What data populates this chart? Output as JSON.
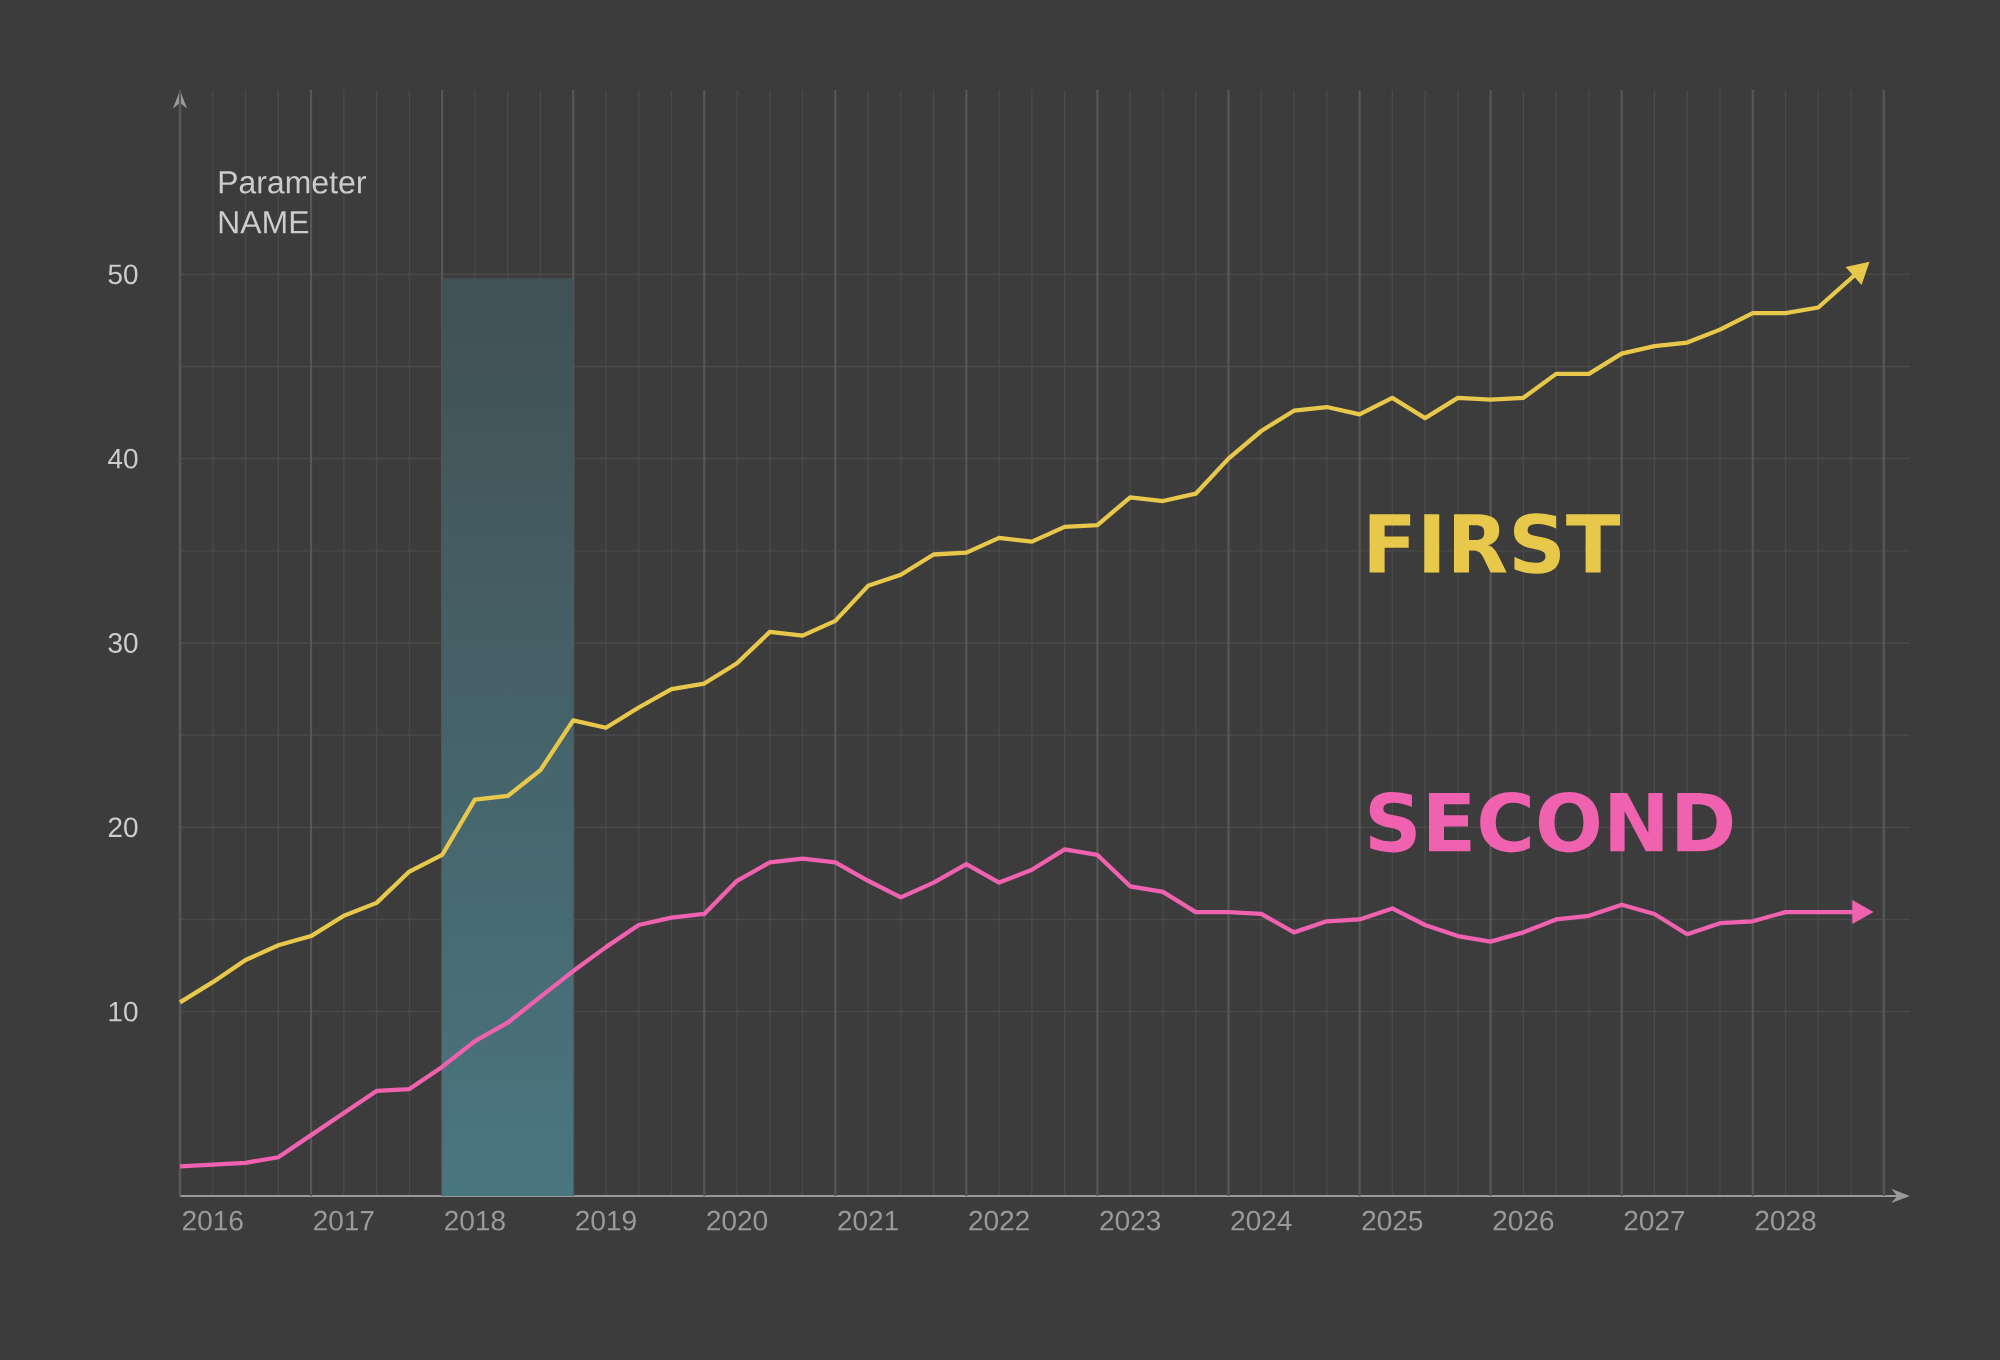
{
  "chart_data": {
    "type": "line",
    "ylabel": "Parameter NAME",
    "x": [
      2016,
      2016.25,
      2016.5,
      2016.75,
      2017,
      2017.25,
      2017.5,
      2017.75,
      2018,
      2018.25,
      2018.5,
      2018.75,
      2019,
      2019.25,
      2019.5,
      2019.75,
      2020,
      2020.25,
      2020.5,
      2020.75,
      2021,
      2021.25,
      2021.5,
      2021.75,
      2022,
      2022.25,
      2022.5,
      2022.75,
      2023,
      2023.25,
      2023.5,
      2023.75,
      2024,
      2024.25,
      2024.5,
      2024.75,
      2025,
      2025.25,
      2025.5,
      2025.75,
      2026,
      2026.25,
      2026.5,
      2026.75,
      2027,
      2027.25,
      2027.5,
      2027.75,
      2028,
      2028.25,
      2028.5,
      2028.8
    ],
    "series": [
      {
        "name": "FIRST",
        "color": "#e8c84a",
        "values": [
          10.5,
          11.6,
          12.8,
          13.6,
          14.1,
          15.2,
          15.9,
          17.6,
          18.5,
          21.5,
          21.7,
          23.1,
          25.8,
          25.4,
          26.5,
          27.5,
          27.8,
          28.9,
          30.6,
          30.4,
          31.2,
          33.1,
          33.7,
          34.8,
          34.9,
          35.7,
          35.5,
          36.3,
          36.4,
          37.9,
          37.7,
          38.1,
          40.0,
          41.5,
          42.6,
          42.8,
          42.4,
          43.3,
          42.2,
          43.3,
          43.2,
          43.3,
          44.6,
          44.6,
          45.7,
          46.1,
          46.3,
          47.0,
          47.9,
          47.9,
          48.2,
          50.1
        ]
      },
      {
        "name": "SECOND",
        "color": "#f062b0",
        "values": [
          1.6,
          1.7,
          1.8,
          2.1,
          3.3,
          4.5,
          5.7,
          5.8,
          7.0,
          8.4,
          9.4,
          10.8,
          12.2,
          13.5,
          14.7,
          15.1,
          15.3,
          17.1,
          18.1,
          18.3,
          18.1,
          17.1,
          16.2,
          17.0,
          18.0,
          17.0,
          17.7,
          18.8,
          18.5,
          16.8,
          16.5,
          15.4,
          15.4,
          15.3,
          14.3,
          14.9,
          15.0,
          15.6,
          14.7,
          14.1,
          13.8,
          14.3,
          15.0,
          15.2,
          15.8,
          15.3,
          14.2,
          14.8,
          14.9,
          15.4,
          15.4,
          15.4
        ]
      }
    ],
    "xlim": [
      2016,
      2029.2
    ],
    "ylim": [
      0,
      60
    ],
    "xticks": [
      {
        "value": 2016.25,
        "label": "2016"
      },
      {
        "value": 2017.25,
        "label": "2017"
      },
      {
        "value": 2018.25,
        "label": "2018"
      },
      {
        "value": 2019.25,
        "label": "2019"
      },
      {
        "value": 2020.25,
        "label": "2020"
      },
      {
        "value": 2021.25,
        "label": "2021"
      },
      {
        "value": 2022.25,
        "label": "2022"
      },
      {
        "value": 2023.25,
        "label": "2023"
      },
      {
        "value": 2024.25,
        "label": "2024"
      },
      {
        "value": 2025.25,
        "label": "2025"
      },
      {
        "value": 2026.25,
        "label": "2026"
      },
      {
        "value": 2027.25,
        "label": "2027"
      },
      {
        "value": 2028.25,
        "label": "2028"
      }
    ],
    "yticks": [
      10,
      20,
      30,
      40,
      50
    ],
    "bands": [
      {
        "axis": "x",
        "from": 2018,
        "to": 2019,
        "color": "#4a7680"
      }
    ],
    "grid": true,
    "marker": "none",
    "line_style": "solid"
  }
}
